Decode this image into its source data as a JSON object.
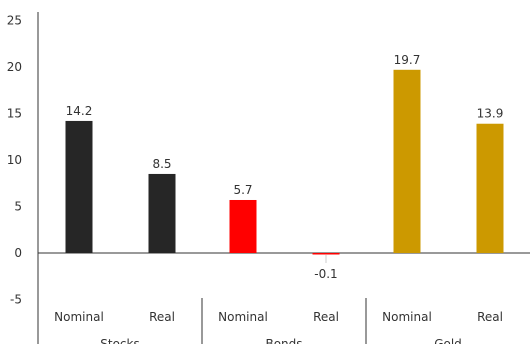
{
  "chart_data": {
    "type": "bar",
    "title": "",
    "xlabel": "",
    "ylabel": "",
    "ylim": [
      -5,
      25
    ],
    "yticks": [
      -5,
      0,
      5,
      10,
      15,
      20,
      25
    ],
    "grid": false,
    "legend": "none",
    "groups": [
      {
        "label": "Stocks",
        "color": "#262626",
        "bars": [
          {
            "category": "Nominal",
            "value": 14.2,
            "label": "14.2"
          },
          {
            "category": "Real",
            "value": 8.5,
            "label": "8.5"
          }
        ]
      },
      {
        "label": "Bonds",
        "color": "#ff0000",
        "bars": [
          {
            "category": "Nominal",
            "value": 5.7,
            "label": "5.7"
          },
          {
            "category": "Real",
            "value": -0.1,
            "label": "-0.1"
          }
        ]
      },
      {
        "label": "Gold",
        "color": "#cc9900",
        "bars": [
          {
            "category": "Nominal",
            "value": 19.7,
            "label": "19.7"
          },
          {
            "category": "Real",
            "value": 13.9,
            "label": "13.9"
          }
        ]
      }
    ]
  }
}
